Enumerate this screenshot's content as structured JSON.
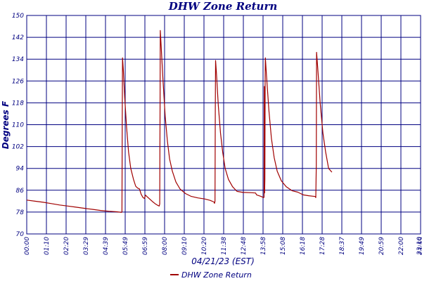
{
  "chart_data": {
    "type": "line",
    "title": "DHW Zone Return",
    "xlabel": "04/21/23 (EST)",
    "ylabel": "Degrees F",
    "ylim": [
      70,
      150
    ],
    "yticks": [
      "150",
      "142",
      "134",
      "126",
      "118",
      "110",
      "102",
      "94",
      "86",
      "78",
      "70"
    ],
    "xticks": [
      "00:00",
      "01:10",
      "02:20",
      "03:29",
      "04:39",
      "05:49",
      "06:59",
      "08:00",
      "09:10",
      "10:20",
      "11:38",
      "12:48",
      "13:58",
      "15:08",
      "16:18",
      "17:28",
      "18:37",
      "19:49",
      "20:59",
      "22:00",
      "23:59",
      "23:10"
    ],
    "xlim": [
      0,
      1439
    ],
    "grid": true,
    "legend_position": "bottom",
    "series": [
      {
        "name": "DHW Zone Return",
        "color": "#a00000",
        "points": [
          [
            0,
            82.4
          ],
          [
            30,
            82
          ],
          [
            60,
            81.6
          ],
          [
            90,
            81.1
          ],
          [
            120,
            80.6
          ],
          [
            150,
            80.2
          ],
          [
            180,
            79.8
          ],
          [
            210,
            79.4
          ],
          [
            240,
            79
          ],
          [
            270,
            78.6
          ],
          [
            300,
            78.3
          ],
          [
            330,
            78.1
          ],
          [
            346,
            77.9
          ],
          [
            348,
            78
          ],
          [
            349,
            112
          ],
          [
            350,
            134.5
          ],
          [
            353,
            130
          ],
          [
            358,
            120
          ],
          [
            365,
            109
          ],
          [
            372,
            100
          ],
          [
            380,
            94
          ],
          [
            390,
            90
          ],
          [
            398,
            87.5
          ],
          [
            405,
            86.8
          ],
          [
            412,
            86.5
          ],
          [
            418,
            84.5
          ],
          [
            425,
            83.3
          ],
          [
            430,
            83
          ],
          [
            434,
            84.2
          ],
          [
            440,
            83.6
          ],
          [
            450,
            82.7
          ],
          [
            460,
            81.8
          ],
          [
            470,
            81
          ],
          [
            480,
            80.4
          ],
          [
            484,
            80.2
          ],
          [
            486,
            81
          ],
          [
            487,
            110
          ],
          [
            488,
            144.5
          ],
          [
            491,
            139
          ],
          [
            498,
            126
          ],
          [
            506,
            113
          ],
          [
            514,
            104
          ],
          [
            522,
            97.5
          ],
          [
            532,
            93
          ],
          [
            545,
            89
          ],
          [
            560,
            86.5
          ],
          [
            580,
            84.8
          ],
          [
            600,
            83.8
          ],
          [
            625,
            83.2
          ],
          [
            650,
            82.8
          ],
          [
            670,
            82.3
          ],
          [
            684,
            81.7
          ],
          [
            686,
            81.2
          ],
          [
            688,
            82
          ],
          [
            689,
            115
          ],
          [
            690,
            133.5
          ],
          [
            693,
            129
          ],
          [
            700,
            117
          ],
          [
            708,
            107
          ],
          [
            716,
            100
          ],
          [
            725,
            94
          ],
          [
            737,
            90
          ],
          [
            752,
            87.3
          ],
          [
            768,
            85.6
          ],
          [
            790,
            85.2
          ],
          [
            820,
            85.1
          ],
          [
            836,
            85
          ],
          [
            840,
            84.3
          ],
          [
            855,
            83.8
          ],
          [
            866,
            83.3
          ],
          [
            867,
            83.5
          ],
          [
            868,
            124
          ],
          [
            869,
            85
          ],
          [
            870,
            90
          ],
          [
            871,
            127
          ],
          [
            872,
            134.5
          ],
          [
            876,
            128
          ],
          [
            885,
            115
          ],
          [
            894,
            105
          ],
          [
            904,
            98
          ],
          [
            915,
            93
          ],
          [
            930,
            89.5
          ],
          [
            948,
            87.3
          ],
          [
            970,
            85.8
          ],
          [
            990,
            85.3
          ],
          [
            1010,
            84.3
          ],
          [
            1030,
            84
          ],
          [
            1054,
            83.7
          ],
          [
            1056,
            83.3
          ],
          [
            1058,
            95
          ],
          [
            1059,
            136.5
          ],
          [
            1063,
            131
          ],
          [
            1072,
            118
          ],
          [
            1082,
            107
          ],
          [
            1092,
            100
          ],
          [
            1103,
            94
          ],
          [
            1115,
            92.6
          ]
        ]
      }
    ]
  }
}
